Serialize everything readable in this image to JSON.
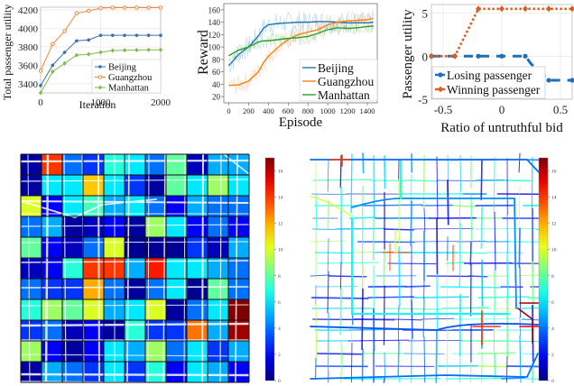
{
  "chart_data": [
    {
      "type": "line",
      "id": "utility-vs-iteration",
      "title": "",
      "xlabel": "Iteration",
      "ylabel": "Total passenger utility",
      "xlim": [
        0,
        2000
      ],
      "ylim": [
        3300,
        4230
      ],
      "xticks": [
        0,
        1000,
        2000
      ],
      "yticks": [
        3400,
        3600,
        3800,
        4000,
        4200
      ],
      "grid": true,
      "legend_position": "bottom-right",
      "x": [
        0,
        200,
        400,
        600,
        800,
        1000,
        1200,
        1400,
        1600,
        1800,
        2000
      ],
      "series": [
        {
          "name": "Beijing",
          "color": "#3a6fb0",
          "marker": "circle",
          "values": [
            3380,
            3600,
            3740,
            3865,
            3875,
            3925,
            3925,
            3925,
            3925,
            3925,
            3925
          ]
        },
        {
          "name": "Guangzhou",
          "color": "#f0883a",
          "marker": "circle-open",
          "values": [
            3540,
            3830,
            3970,
            4165,
            4190,
            4220,
            4225,
            4225,
            4225,
            4225,
            4225
          ]
        },
        {
          "name": "Manhattan",
          "color": "#7dbb4a",
          "marker": "diamond",
          "values": [
            3300,
            3530,
            3620,
            3710,
            3720,
            3740,
            3760,
            3762,
            3765,
            3767,
            3767
          ]
        }
      ]
    },
    {
      "type": "line",
      "id": "reward-vs-episode",
      "title": "",
      "xlabel": "Episode",
      "ylabel": "Reward",
      "xlim": [
        -50,
        1500
      ],
      "ylim": [
        10,
        170
      ],
      "xticks": [
        0,
        200,
        400,
        600,
        800,
        1000,
        1200,
        1400
      ],
      "yticks": [
        20,
        40,
        60,
        80,
        100,
        120,
        140,
        160
      ],
      "grid": false,
      "legend_position": "bottom-right",
      "x": [
        0,
        100,
        200,
        300,
        350,
        400,
        500,
        600,
        700,
        800,
        900,
        1000,
        1100,
        1200,
        1300,
        1400,
        1460
      ],
      "series": [
        {
          "name": "Beijing",
          "color": "#1f77b4",
          "values": [
            70,
            88,
            100,
            118,
            130,
            136,
            138,
            139,
            140,
            140,
            141,
            141,
            140,
            139,
            139,
            139,
            140
          ]
        },
        {
          "name": "Guangzhou",
          "color": "#ff7f0e",
          "values": [
            38,
            39,
            45,
            60,
            75,
            85,
            100,
            112,
            120,
            124,
            128,
            136,
            140,
            142,
            143,
            144,
            146
          ]
        },
        {
          "name": "Manhattan",
          "color": "#2ca02c",
          "values": [
            86,
            95,
            100,
            108,
            110,
            110,
            112,
            114,
            115,
            117,
            122,
            128,
            131,
            130,
            131,
            133,
            134
          ]
        }
      ]
    },
    {
      "type": "line",
      "id": "utility-vs-untruthful-bid",
      "title": "",
      "xlabel": "Ratio of untruthful bid",
      "ylabel": "Passenger utility",
      "xlim": [
        -0.6,
        0.6
      ],
      "ylim": [
        -5,
        6
      ],
      "xticks": [
        -0.5,
        0,
        0.5
      ],
      "yticks": [
        -5,
        0,
        5
      ],
      "grid": true,
      "legend_position": "bottom-left",
      "x": [
        -0.6,
        -0.4,
        -0.2,
        0.0,
        0.2,
        0.4,
        0.6
      ],
      "series": [
        {
          "name": "Losing passenger",
          "color": "#1f6fb8",
          "style": "dashed",
          "marker": "circle",
          "x": [
            -0.6,
            -0.4,
            -0.2,
            0.0,
            0.2,
            0.25,
            0.4,
            0.6
          ],
          "values": [
            0,
            0,
            0,
            0,
            0,
            -0.9,
            -2.8,
            -2.8
          ]
        },
        {
          "name": "Winning passenger",
          "color": "#d95f20",
          "style": "dotted",
          "marker": "diamond",
          "x": [
            -0.6,
            -0.4,
            -0.2,
            0.0,
            0.2,
            0.4,
            0.6
          ],
          "values": [
            0,
            0,
            5.5,
            5.5,
            5.5,
            5.5,
            5.5
          ]
        }
      ]
    },
    {
      "type": "heatmap",
      "id": "grid-demand-heatmap",
      "title": "",
      "rows": 11,
      "cols": 11,
      "colormap": "jet",
      "colorbar_range": [
        0,
        17
      ],
      "colorbar_ticks": [
        0,
        2,
        4,
        6,
        8,
        10,
        12,
        14,
        16
      ],
      "values": [
        [
          0.5,
          14,
          4,
          3,
          7,
          6,
          4,
          8,
          1,
          5,
          5
        ],
        [
          0.5,
          6,
          6,
          11.5,
          6,
          3,
          0.5,
          8,
          6,
          9,
          6
        ],
        [
          10,
          2,
          6,
          7.5,
          5,
          6,
          4,
          2,
          5,
          4,
          4
        ],
        [
          4,
          5,
          0.5,
          1,
          2,
          0.5,
          9,
          6,
          2,
          4,
          2
        ],
        [
          8,
          2,
          1,
          4,
          10,
          0.3,
          0.3,
          0.3,
          3,
          1,
          5
        ],
        [
          1,
          2,
          7,
          14,
          14,
          5,
          14.5,
          6,
          6,
          5,
          4
        ],
        [
          4,
          3,
          3,
          12,
          4,
          0.5,
          4,
          6,
          0.3,
          8,
          4
        ],
        [
          7,
          9,
          8,
          10,
          5,
          6,
          10,
          0.5,
          4,
          6,
          17
        ],
        [
          3,
          4,
          1,
          2,
          0.5,
          7,
          3,
          3,
          13,
          5,
          16.5
        ],
        [
          9,
          2,
          0.5,
          2,
          6,
          5,
          9,
          4,
          6,
          3,
          5
        ],
        [
          0.5,
          5,
          4,
          3,
          6,
          3,
          7,
          2,
          6,
          5,
          2
        ]
      ]
    },
    {
      "type": "heatmap",
      "id": "road-network-heatmap",
      "title": "",
      "colormap": "jet",
      "colorbar_range": [
        0,
        17
      ],
      "colorbar_ticks": [
        0,
        2,
        4,
        6,
        8,
        10,
        12,
        14,
        16
      ]
    }
  ]
}
